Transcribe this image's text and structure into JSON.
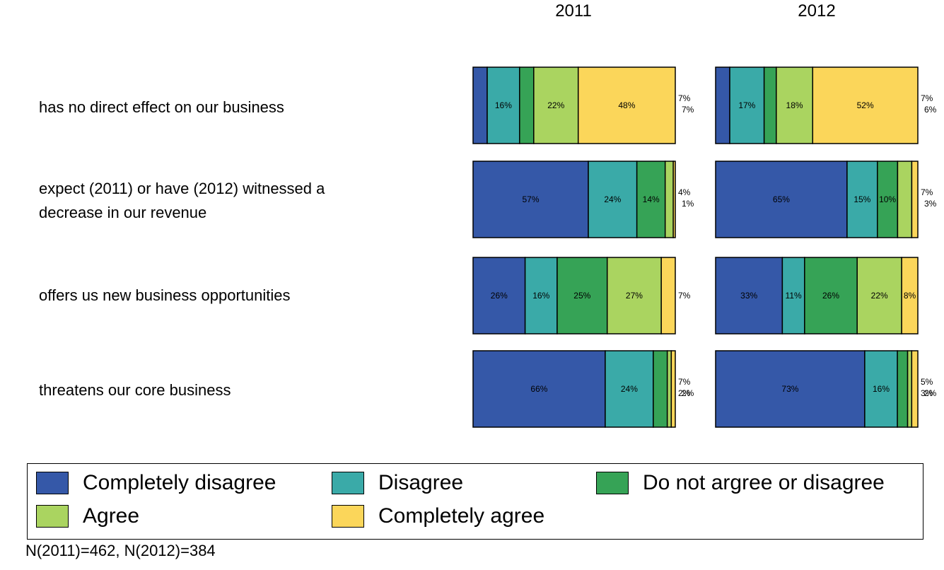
{
  "chart_data": {
    "type": "bar",
    "orientation": "horizontal-stacked-100",
    "panels": [
      "2011",
      "2012"
    ],
    "categories": [
      "has no direct effect on our business",
      "expect (2011) or have (2012) witnessed a decrease in our revenue",
      "offers us new business opportunities",
      "threatens our core business"
    ],
    "category_lines": [
      [
        "has no direct effect on our business"
      ],
      [
        "expect (2011) or have (2012) witnessed a",
        "decrease in our revenue"
      ],
      [
        "offers us new business opportunities"
      ],
      [
        "threatens our core business"
      ]
    ],
    "series": [
      {
        "name": "Completely disagree",
        "color": "#3558a8",
        "values_2011": [
          7,
          57,
          26,
          66
        ],
        "values_2012": [
          7,
          65,
          33,
          73
        ]
      },
      {
        "name": "Disagree",
        "color": "#3aaaa8",
        "values_2011": [
          16,
          24,
          16,
          24
        ],
        "values_2012": [
          17,
          15,
          11,
          16
        ]
      },
      {
        "name": "Do not argree or disagree",
        "color": "#36a356",
        "values_2011": [
          7,
          14,
          25,
          7
        ],
        "values_2012": [
          6,
          10,
          26,
          5
        ]
      },
      {
        "name": "Agree",
        "color": "#aad460",
        "values_2011": [
          22,
          4,
          27,
          2
        ],
        "values_2012": [
          18,
          7,
          22,
          2
        ]
      },
      {
        "name": "Completely agree",
        "color": "#fbd65a",
        "values_2011": [
          48,
          1,
          7,
          2
        ],
        "values_2012": [
          52,
          3,
          8,
          3
        ]
      }
    ],
    "xlim": [
      0,
      100
    ],
    "legend_position": "bottom",
    "note": "N(2011)=462, N(2012)=384"
  }
}
